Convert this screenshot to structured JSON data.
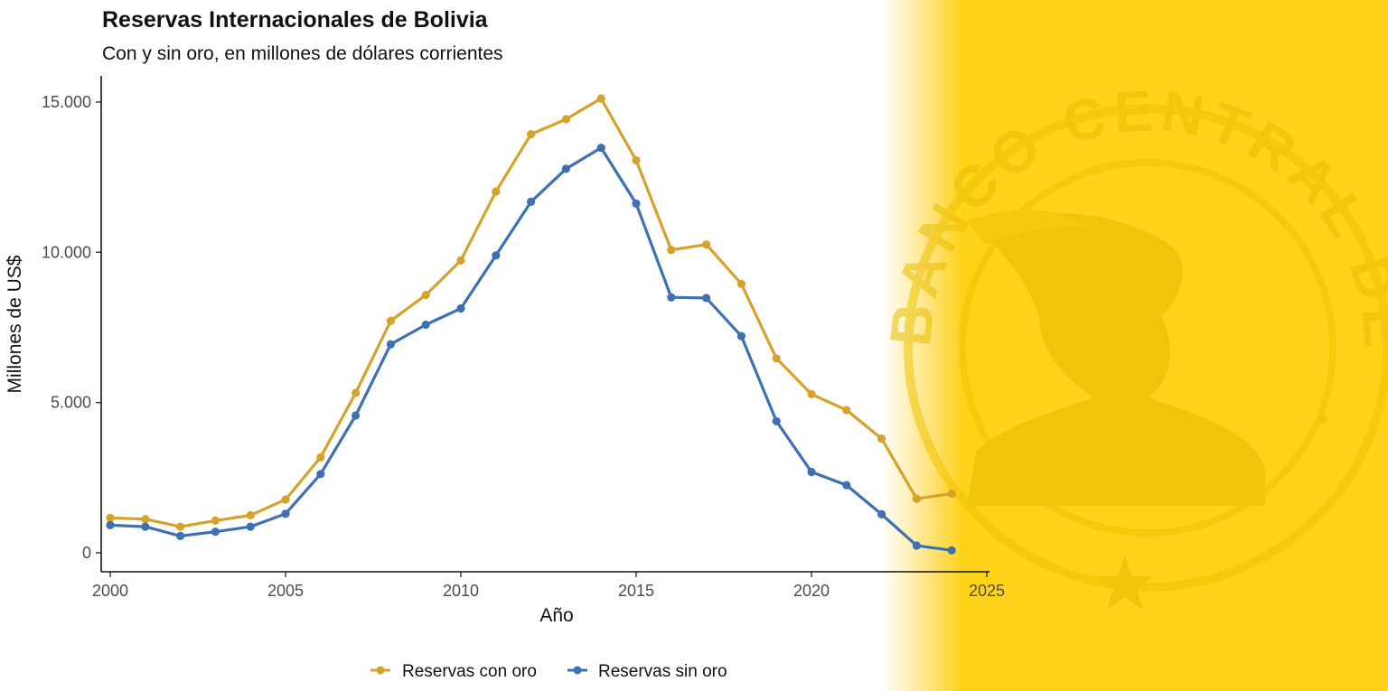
{
  "chart_data": {
    "type": "line",
    "title": "Reservas Internacionales de Bolivia",
    "subtitle": "Con y sin oro, en millones de dólares corrientes",
    "xlabel": "Año",
    "ylabel": "Millones de US$",
    "xlim": [
      2000,
      2025
    ],
    "ylim": [
      0,
      15500
    ],
    "x_ticks": [
      2000,
      2005,
      2010,
      2015,
      2020,
      2025
    ],
    "x_tick_labels": [
      "2000",
      "2005",
      "2010",
      "2015",
      "2020",
      "2025"
    ],
    "y_ticks": [
      0,
      5000,
      10000,
      15000
    ],
    "y_tick_labels": [
      "0",
      "5.000",
      "10.000",
      "15.000"
    ],
    "grid": false,
    "legend_position": "bottom",
    "x": [
      2000,
      2001,
      2002,
      2003,
      2004,
      2005,
      2006,
      2007,
      2008,
      2009,
      2010,
      2011,
      2012,
      2013,
      2014,
      2015,
      2016,
      2017,
      2018,
      2019,
      2020,
      2021,
      2022,
      2023,
      2024
    ],
    "series": [
      {
        "name": "Reservas con oro",
        "color": "#d5a22b",
        "values": [
          1160,
          1120,
          870,
          1070,
          1250,
          1770,
          3180,
          5320,
          7720,
          8580,
          9730,
          12020,
          13930,
          14430,
          15120,
          13060,
          10080,
          10260,
          8950,
          6470,
          5280,
          4750,
          3800,
          1800,
          1970
        ]
      },
      {
        "name": "Reservas sin oro",
        "color": "#3d71b4",
        "values": [
          920,
          870,
          560,
          700,
          870,
          1300,
          2620,
          4570,
          6940,
          7590,
          8130,
          9900,
          11680,
          12780,
          13480,
          11620,
          8500,
          8480,
          7210,
          4380,
          2690,
          2250,
          1280,
          240,
          80
        ]
      }
    ]
  },
  "watermark": {
    "seal_text": "BANCO CENTRAL DE BOLIVIA",
    "seal_icon": "mercury-head-icon",
    "background_color": "#fed319"
  }
}
